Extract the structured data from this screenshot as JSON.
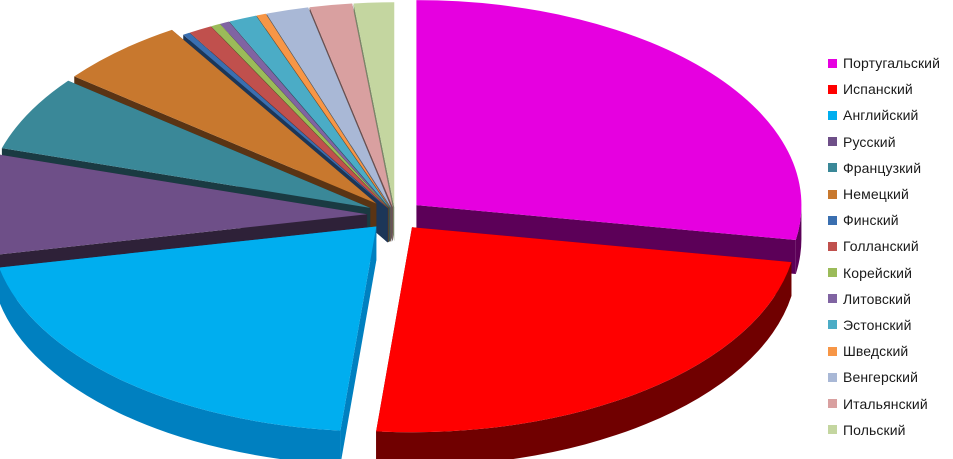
{
  "chart_data": {
    "type": "pie",
    "style": "3d-exploded",
    "legend_position": "right",
    "series": [
      {
        "label": "Португальский",
        "value": 28.0,
        "color": "#e600e0",
        "dark": "#5c0058"
      },
      {
        "label": "Испанский",
        "value": 24.0,
        "color": "#ff0000",
        "dark": "#700000"
      },
      {
        "label": "Английский",
        "value": 20.5,
        "color": "#00aeef",
        "dark": "#0080c0"
      },
      {
        "label": "Русский",
        "value": 8.0,
        "color": "#6e4f88",
        "dark": "#2e2138"
      },
      {
        "label": "Французкий",
        "value": 6.0,
        "color": "#3a8898",
        "dark": "#1a3a42"
      },
      {
        "label": "Немецкий",
        "value": 5.5,
        "color": "#c8782e",
        "dark": "#5a3414"
      },
      {
        "label": "Финский",
        "value": 0.3,
        "color": "#3a6fb0",
        "dark": "#1c3658"
      },
      {
        "label": "Голланский",
        "value": 1.0,
        "color": "#c0504d",
        "dark": "#5e2624"
      },
      {
        "label": "Корейский",
        "value": 0.4,
        "color": "#9bbb59",
        "dark": "#4d5d2c"
      },
      {
        "label": "Литовский",
        "value": 0.4,
        "color": "#8064a2",
        "dark": "#403150"
      },
      {
        "label": "Эстонский",
        "value": 1.2,
        "color": "#4bacc6",
        "dark": "#255662"
      },
      {
        "label": "Шведский",
        "value": 0.4,
        "color": "#f79646",
        "dark": "#7b4a22"
      },
      {
        "label": "Венгерский",
        "value": 1.8,
        "color": "#a9b8d6",
        "dark": "#54606e"
      },
      {
        "label": "Итальянский",
        "value": 1.8,
        "color": "#d9a0a0",
        "dark": "#6c5050"
      },
      {
        "label": "Польский",
        "value": 1.7,
        "color": "#c4d6a0",
        "dark": "#7a8668"
      }
    ]
  }
}
